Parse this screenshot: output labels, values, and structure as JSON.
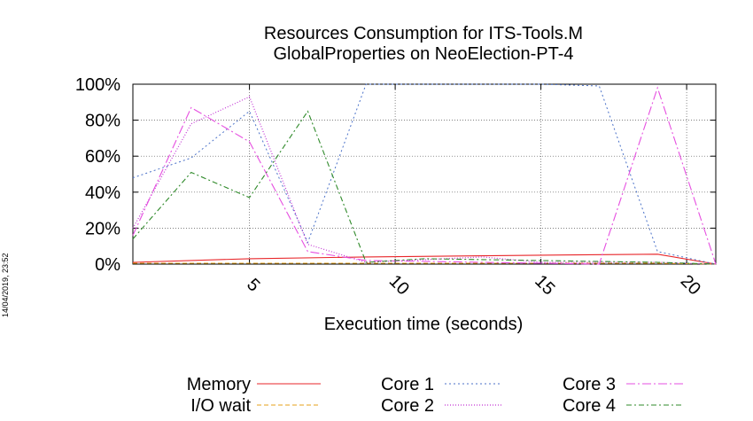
{
  "chart_data": {
    "type": "line",
    "title": [
      "Resources Consumption for ITS-Tools.M",
      "GlobalProperties on NeoElection-PT-4"
    ],
    "xlabel": "Execution time (seconds)",
    "ylabel": "",
    "side_label": "14/04/2019, 23:52",
    "xlim": [
      1,
      21
    ],
    "ylim": [
      0,
      100
    ],
    "xticks": [
      5,
      10,
      15,
      20
    ],
    "yticks": [
      0,
      20,
      40,
      60,
      80,
      100
    ],
    "ytick_labels": [
      "0%",
      "20%",
      "40%",
      "60%",
      "80%",
      "100%"
    ],
    "grid": true,
    "legend_position": "bottom",
    "series": [
      {
        "name": "Memory",
        "color": "#e8262a",
        "dash": "",
        "width": 1.1,
        "x": [
          1,
          5,
          9,
          15,
          19,
          21
        ],
        "y": [
          1,
          3,
          4,
          5,
          5.5,
          0
        ]
      },
      {
        "name": "I/O wait",
        "color": "#e6a21a",
        "dash": "5,3",
        "width": 1,
        "x": [
          1,
          19,
          21
        ],
        "y": [
          0.5,
          0.5,
          0
        ]
      },
      {
        "name": "Core 1",
        "color": "#4b72c9",
        "dash": "2,3",
        "width": 1,
        "x": [
          1,
          3,
          5,
          7,
          9,
          15,
          17,
          19,
          21
        ],
        "y": [
          48,
          59,
          85,
          12,
          100,
          100,
          99,
          7,
          0
        ]
      },
      {
        "name": "Core 2",
        "color": "#c233d4",
        "dash": "1,2",
        "width": 1.2,
        "x": [
          1,
          3,
          5,
          7,
          9,
          13,
          15,
          19,
          21
        ],
        "y": [
          20,
          78,
          93,
          11,
          1,
          4,
          1,
          1,
          0
        ]
      },
      {
        "name": "Core 3",
        "color": "#e64fe0",
        "dash": "10,3,2,3",
        "width": 1.1,
        "x": [
          1,
          3,
          5,
          7,
          9,
          17,
          19,
          21
        ],
        "y": [
          16,
          87,
          68,
          7,
          2,
          0,
          98,
          0
        ]
      },
      {
        "name": "Core 4",
        "color": "#2f8a2a",
        "dash": "6,3,2,3",
        "width": 1.1,
        "x": [
          1,
          3,
          5,
          7,
          9,
          11,
          19,
          21
        ],
        "y": [
          14,
          51,
          37,
          85,
          1,
          3,
          1,
          0
        ]
      }
    ]
  }
}
